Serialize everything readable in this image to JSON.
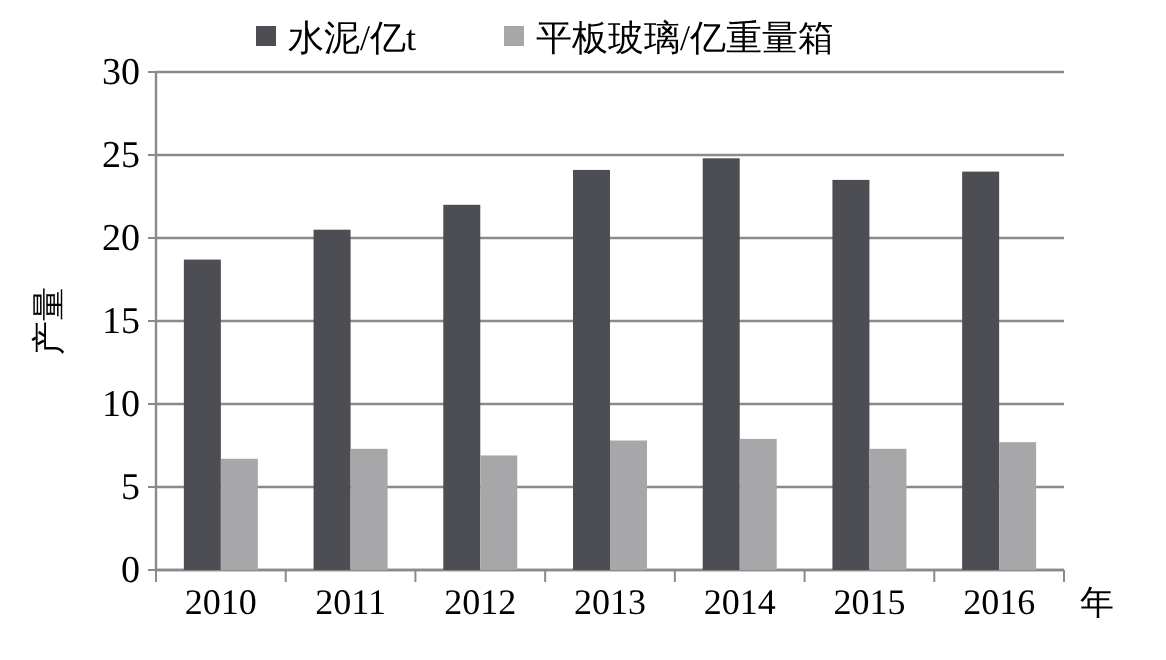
{
  "chart_data": {
    "type": "bar",
    "xlabel": "年",
    "ylabel": "产量",
    "categories": [
      "2010",
      "2011",
      "2012",
      "2013",
      "2014",
      "2015",
      "2016"
    ],
    "series": [
      {
        "name": "水泥/亿t",
        "color": "#4d4e53",
        "values": [
          18.7,
          20.5,
          22.0,
          24.1,
          24.8,
          23.5,
          24.0
        ]
      },
      {
        "name": "平板玻璃/亿重量箱",
        "color": "#a7a7a9",
        "values": [
          6.7,
          7.3,
          6.9,
          7.8,
          7.9,
          7.3,
          7.7
        ]
      }
    ],
    "ylim": [
      0,
      30
    ],
    "yticks": [
      0,
      5,
      10,
      15,
      20,
      25,
      30
    ],
    "grid": "y",
    "legend": "top"
  }
}
